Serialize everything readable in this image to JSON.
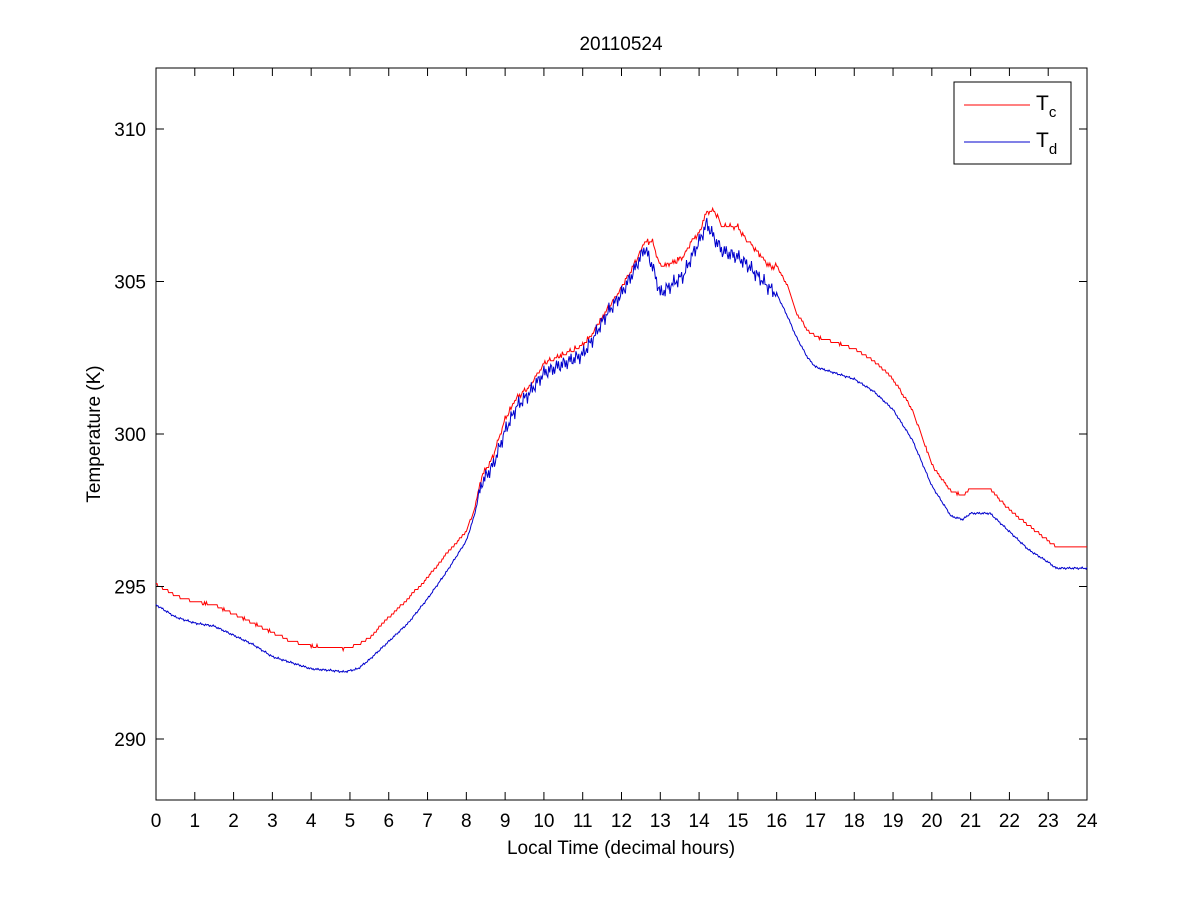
{
  "chart_data": {
    "type": "line",
    "title": "20110524",
    "xlabel": "Local Time (decimal hours)",
    "ylabel": "Temperature (K)",
    "xlim": [
      0,
      24
    ],
    "ylim": [
      288,
      312
    ],
    "x_ticks": [
      "0",
      "1",
      "2",
      "3",
      "4",
      "5",
      "6",
      "7",
      "8",
      "9",
      "10",
      "11",
      "12",
      "13",
      "14",
      "15",
      "16",
      "17",
      "18",
      "19",
      "20",
      "21",
      "22",
      "23",
      "24"
    ],
    "y_ticks": [
      "290",
      "295",
      "300",
      "305",
      "310"
    ],
    "grid": false,
    "legend_position": "top-right",
    "series": [
      {
        "name_main": "T",
        "name_sub": "c",
        "color": "#ff0000",
        "points": [
          [
            0,
            295.1
          ],
          [
            0.5,
            294.7
          ],
          [
            1,
            294.5
          ],
          [
            1.5,
            294.4
          ],
          [
            2,
            294.1
          ],
          [
            2.5,
            293.8
          ],
          [
            3,
            293.5
          ],
          [
            3.5,
            293.2
          ],
          [
            4,
            293.05
          ],
          [
            4.5,
            293.0
          ],
          [
            4.85,
            292.95
          ],
          [
            5.2,
            293.1
          ],
          [
            5.5,
            293.3
          ],
          [
            6,
            294.0
          ],
          [
            6.5,
            294.6
          ],
          [
            7,
            295.3
          ],
          [
            7.5,
            296.1
          ],
          [
            8,
            296.8
          ],
          [
            8.2,
            297.5
          ],
          [
            8.4,
            298.6
          ],
          [
            8.7,
            299.3
          ],
          [
            9,
            300.5
          ],
          [
            9.3,
            301.2
          ],
          [
            9.6,
            301.5
          ],
          [
            10,
            302.3
          ],
          [
            10.5,
            302.6
          ],
          [
            11,
            302.9
          ],
          [
            11.3,
            303.4
          ],
          [
            11.6,
            304.0
          ],
          [
            12,
            304.8
          ],
          [
            12.3,
            305.5
          ],
          [
            12.6,
            306.3
          ],
          [
            12.8,
            306.3
          ],
          [
            13,
            305.5
          ],
          [
            13.3,
            305.6
          ],
          [
            13.6,
            305.8
          ],
          [
            13.8,
            306.3
          ],
          [
            14,
            306.6
          ],
          [
            14.2,
            307.3
          ],
          [
            14.4,
            307.3
          ],
          [
            14.6,
            306.8
          ],
          [
            15,
            306.8
          ],
          [
            15.2,
            306.4
          ],
          [
            15.5,
            306.0
          ],
          [
            15.8,
            305.5
          ],
          [
            16,
            305.5
          ],
          [
            16.3,
            304.8
          ],
          [
            16.5,
            304.0
          ],
          [
            16.8,
            303.4
          ],
          [
            17,
            303.2
          ],
          [
            17.5,
            303.0
          ],
          [
            18,
            302.8
          ],
          [
            18.5,
            302.4
          ],
          [
            19,
            301.8
          ],
          [
            19.5,
            300.8
          ],
          [
            20,
            299.0
          ],
          [
            20.5,
            298.1
          ],
          [
            20.8,
            298.0
          ],
          [
            21,
            298.2
          ],
          [
            21.5,
            298.2
          ],
          [
            22,
            297.5
          ],
          [
            22.5,
            297.0
          ],
          [
            23,
            296.5
          ],
          [
            23.2,
            296.3
          ],
          [
            24,
            296.3
          ]
        ]
      },
      {
        "name_main": "T",
        "name_sub": "d",
        "color": "#0000cc",
        "points": [
          [
            0,
            294.4
          ],
          [
            0.5,
            294.0
          ],
          [
            1,
            293.8
          ],
          [
            1.5,
            293.7
          ],
          [
            2,
            293.4
          ],
          [
            2.5,
            293.1
          ],
          [
            3,
            292.7
          ],
          [
            3.5,
            292.5
          ],
          [
            4,
            292.3
          ],
          [
            4.5,
            292.25
          ],
          [
            4.85,
            292.2
          ],
          [
            5.2,
            292.3
          ],
          [
            5.5,
            292.6
          ],
          [
            6,
            293.2
          ],
          [
            6.5,
            293.8
          ],
          [
            7,
            294.6
          ],
          [
            7.5,
            295.5
          ],
          [
            8,
            296.5
          ],
          [
            8.2,
            297.3
          ],
          [
            8.4,
            298.4
          ],
          [
            8.7,
            299.0
          ],
          [
            9,
            300.1
          ],
          [
            9.3,
            300.9
          ],
          [
            9.6,
            301.3
          ],
          [
            10,
            302.0
          ],
          [
            10.5,
            302.3
          ],
          [
            11,
            302.6
          ],
          [
            11.3,
            303.2
          ],
          [
            11.6,
            303.9
          ],
          [
            12,
            304.6
          ],
          [
            12.3,
            305.3
          ],
          [
            12.6,
            306.1
          ],
          [
            12.8,
            305.5
          ],
          [
            13,
            304.6
          ],
          [
            13.3,
            304.9
          ],
          [
            13.6,
            305.2
          ],
          [
            13.8,
            305.8
          ],
          [
            14,
            306.3
          ],
          [
            14.2,
            306.9
          ],
          [
            14.4,
            306.4
          ],
          [
            14.6,
            306.0
          ],
          [
            15,
            305.8
          ],
          [
            15.2,
            305.6
          ],
          [
            15.5,
            305.2
          ],
          [
            15.8,
            304.8
          ],
          [
            16,
            304.6
          ],
          [
            16.3,
            303.8
          ],
          [
            16.5,
            303.2
          ],
          [
            16.8,
            302.5
          ],
          [
            17,
            302.2
          ],
          [
            17.5,
            302.0
          ],
          [
            18,
            301.8
          ],
          [
            18.5,
            301.4
          ],
          [
            19,
            300.8
          ],
          [
            19.5,
            299.8
          ],
          [
            20,
            298.3
          ],
          [
            20.5,
            297.3
          ],
          [
            20.8,
            297.2
          ],
          [
            21,
            297.4
          ],
          [
            21.5,
            297.4
          ],
          [
            22,
            296.8
          ],
          [
            22.5,
            296.2
          ],
          [
            23,
            295.8
          ],
          [
            23.2,
            295.6
          ],
          [
            24,
            295.6
          ]
        ]
      }
    ]
  }
}
